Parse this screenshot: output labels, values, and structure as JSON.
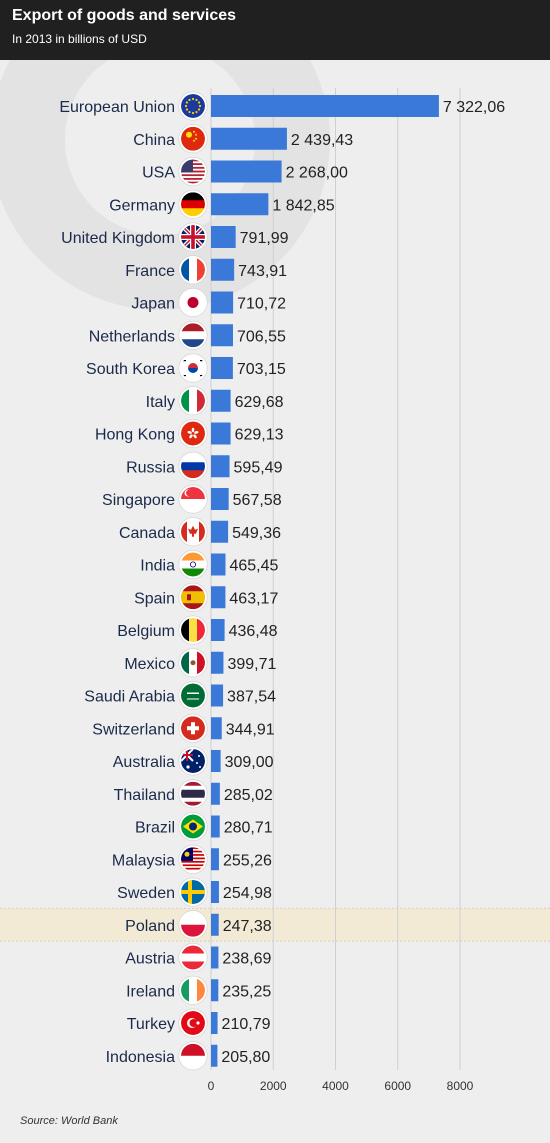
{
  "header": {
    "title": "Export of goods and services",
    "subtitle": "In 2013 in billions of USD"
  },
  "footer": {
    "source": "Source: World Bank"
  },
  "colors": {
    "bar": "#3a79d8",
    "highlight_band": "#f3ead6",
    "header_bg": "#202020",
    "background": "#eeeeee"
  },
  "chart_data": {
    "type": "bar",
    "orientation": "horizontal",
    "title": "Export of goods and services",
    "subtitle": "In 2013 in billions of USD",
    "xlim": [
      0,
      8000
    ],
    "xticks": [
      "0",
      "2000",
      "4000",
      "6000",
      "8000"
    ],
    "grid": true,
    "highlight": "Poland",
    "categories": [
      "European Union",
      "China",
      "USA",
      "Germany",
      "United Kingdom",
      "France",
      "Japan",
      "Netherlands",
      "South Korea",
      "Italy",
      "Hong Kong",
      "Russia",
      "Singapore",
      "Canada",
      "India",
      "Spain",
      "Belgium",
      "Mexico",
      "Saudi Arabia",
      "Switzerland",
      "Australia",
      "Thailand",
      "Brazil",
      "Malaysia",
      "Sweden",
      "Poland",
      "Austria",
      "Ireland",
      "Turkey",
      "Indonesia"
    ],
    "values": [
      7322.06,
      2439.43,
      2268.0,
      1842.85,
      791.99,
      743.91,
      710.72,
      706.55,
      703.15,
      629.68,
      629.13,
      595.49,
      567.58,
      549.36,
      465.45,
      463.17,
      436.48,
      399.71,
      387.54,
      344.91,
      309.0,
      285.02,
      280.71,
      255.26,
      254.98,
      247.38,
      238.69,
      235.25,
      210.79,
      205.8
    ],
    "value_labels": [
      "7 322,06",
      "2 439,43",
      "2 268,00",
      "1 842,85",
      "791,99",
      "743,91",
      "710,72",
      "706,55",
      "703,15",
      "629,68",
      "629,13",
      "595,49",
      "567,58",
      "549,36",
      "465,45",
      "463,17",
      "436,48",
      "399,71",
      "387,54",
      "344,91",
      "309,00",
      "285,02",
      "280,71",
      "255,26",
      "254,98",
      "247,38",
      "238,69",
      "235,25",
      "210,79",
      "205,80"
    ],
    "flags": [
      "eu-flag-icon",
      "china-flag-icon",
      "usa-flag-icon",
      "germany-flag-icon",
      "uk-flag-icon",
      "france-flag-icon",
      "japan-flag-icon",
      "netherlands-flag-icon",
      "south-korea-flag-icon",
      "italy-flag-icon",
      "hong-kong-flag-icon",
      "russia-flag-icon",
      "singapore-flag-icon",
      "canada-flag-icon",
      "india-flag-icon",
      "spain-flag-icon",
      "belgium-flag-icon",
      "mexico-flag-icon",
      "saudi-arabia-flag-icon",
      "switzerland-flag-icon",
      "australia-flag-icon",
      "thailand-flag-icon",
      "brazil-flag-icon",
      "malaysia-flag-icon",
      "sweden-flag-icon",
      "poland-flag-icon",
      "austria-flag-icon",
      "ireland-flag-icon",
      "turkey-flag-icon",
      "indonesia-flag-icon"
    ]
  }
}
